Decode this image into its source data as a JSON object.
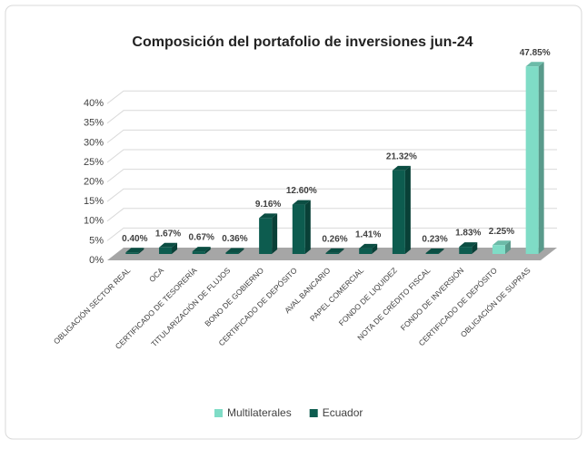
{
  "chart_data": {
    "type": "bar3d",
    "title": "Composición del portafolio de inversiones jun-24",
    "categories": [
      "OBLIGACIÓN SECTOR REAL",
      "OCA",
      "CERTIFICADO DE TESORERÍA",
      "TITULARIZACIÓN DE FLUJOS",
      "BONO DE GOBIERNO",
      "CERTIFICADO DE DEPÓSITO",
      "AVAL BANCARIO",
      "PAPEL COMERCIAL",
      "FONDO DE LIQUIDEZ",
      "NOTA DE CRÉDITO FISCAL",
      "FONDO DE INVERSIÓN",
      "CERTIFICADO DE DEPÓSITO",
      "OBLIGACIÓN DE SUPRAS"
    ],
    "series": [
      {
        "name": "Multilaterales",
        "color": "#7fdcc6",
        "values": [
          null,
          null,
          null,
          null,
          null,
          null,
          null,
          null,
          null,
          null,
          null,
          2.25,
          47.85
        ],
        "value_labels": [
          null,
          null,
          null,
          null,
          null,
          null,
          null,
          null,
          null,
          null,
          null,
          "2.25%",
          "47.85%"
        ]
      },
      {
        "name": "Ecuador",
        "color": "#0d5c4f",
        "values": [
          0.4,
          1.67,
          0.67,
          0.36,
          9.16,
          12.6,
          0.26,
          1.41,
          21.32,
          0.23,
          1.83,
          null,
          null
        ],
        "value_labels": [
          "0.40%",
          "1.67%",
          "0.67%",
          "0.36%",
          "9.16%",
          "12.60%",
          "0.26%",
          "1.41%",
          "21.32%",
          "0.23%",
          "1.83%",
          null,
          null
        ]
      }
    ],
    "ylim": [
      0,
      50
    ],
    "yticks": [
      {
        "value": 0,
        "label": "0%"
      },
      {
        "value": 5,
        "label": "5%"
      },
      {
        "value": 10,
        "label": "10%"
      },
      {
        "value": 15,
        "label": "15%"
      },
      {
        "value": 20,
        "label": "20%"
      },
      {
        "value": 25,
        "label": "25%"
      },
      {
        "value": 30,
        "label": "30%"
      },
      {
        "value": 35,
        "label": "35%"
      },
      {
        "value": 40,
        "label": "40%"
      }
    ],
    "grid": true,
    "legend": "bottom"
  }
}
